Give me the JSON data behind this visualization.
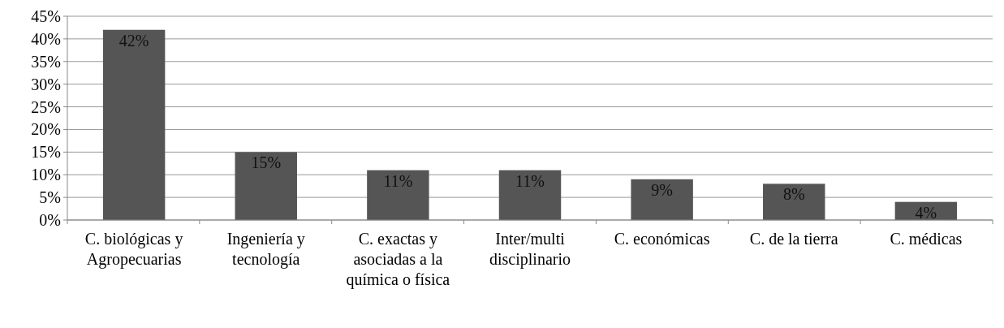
{
  "chart_data": {
    "type": "bar",
    "categories": [
      "C. biológicas y Agropecuarias",
      "Ingeniería y tecnología",
      "C. exactas y asociadas a la química o física",
      "Inter/multi disciplinario",
      "C. económicas",
      "C. de la tierra",
      "C. médicas"
    ],
    "values": [
      42,
      15,
      11,
      11,
      9,
      8,
      4
    ],
    "value_labels": [
      "42%",
      "15%",
      "11%",
      "11%",
      "9%",
      "8%",
      "4%"
    ],
    "color": "#555555",
    "ylim": [
      0,
      45
    ],
    "yticks": [
      {
        "value": 0,
        "label": "0%"
      },
      {
        "value": 5,
        "label": "5%"
      },
      {
        "value": 10,
        "label": "10%"
      },
      {
        "value": 15,
        "label": "15%"
      },
      {
        "value": 20,
        "label": "20%"
      },
      {
        "value": 25,
        "label": "25%"
      },
      {
        "value": 30,
        "label": "30%"
      },
      {
        "value": 35,
        "label": "35%"
      },
      {
        "value": 40,
        "label": "40%"
      },
      {
        "value": 45,
        "label": "45%"
      }
    ],
    "grid": "y"
  }
}
